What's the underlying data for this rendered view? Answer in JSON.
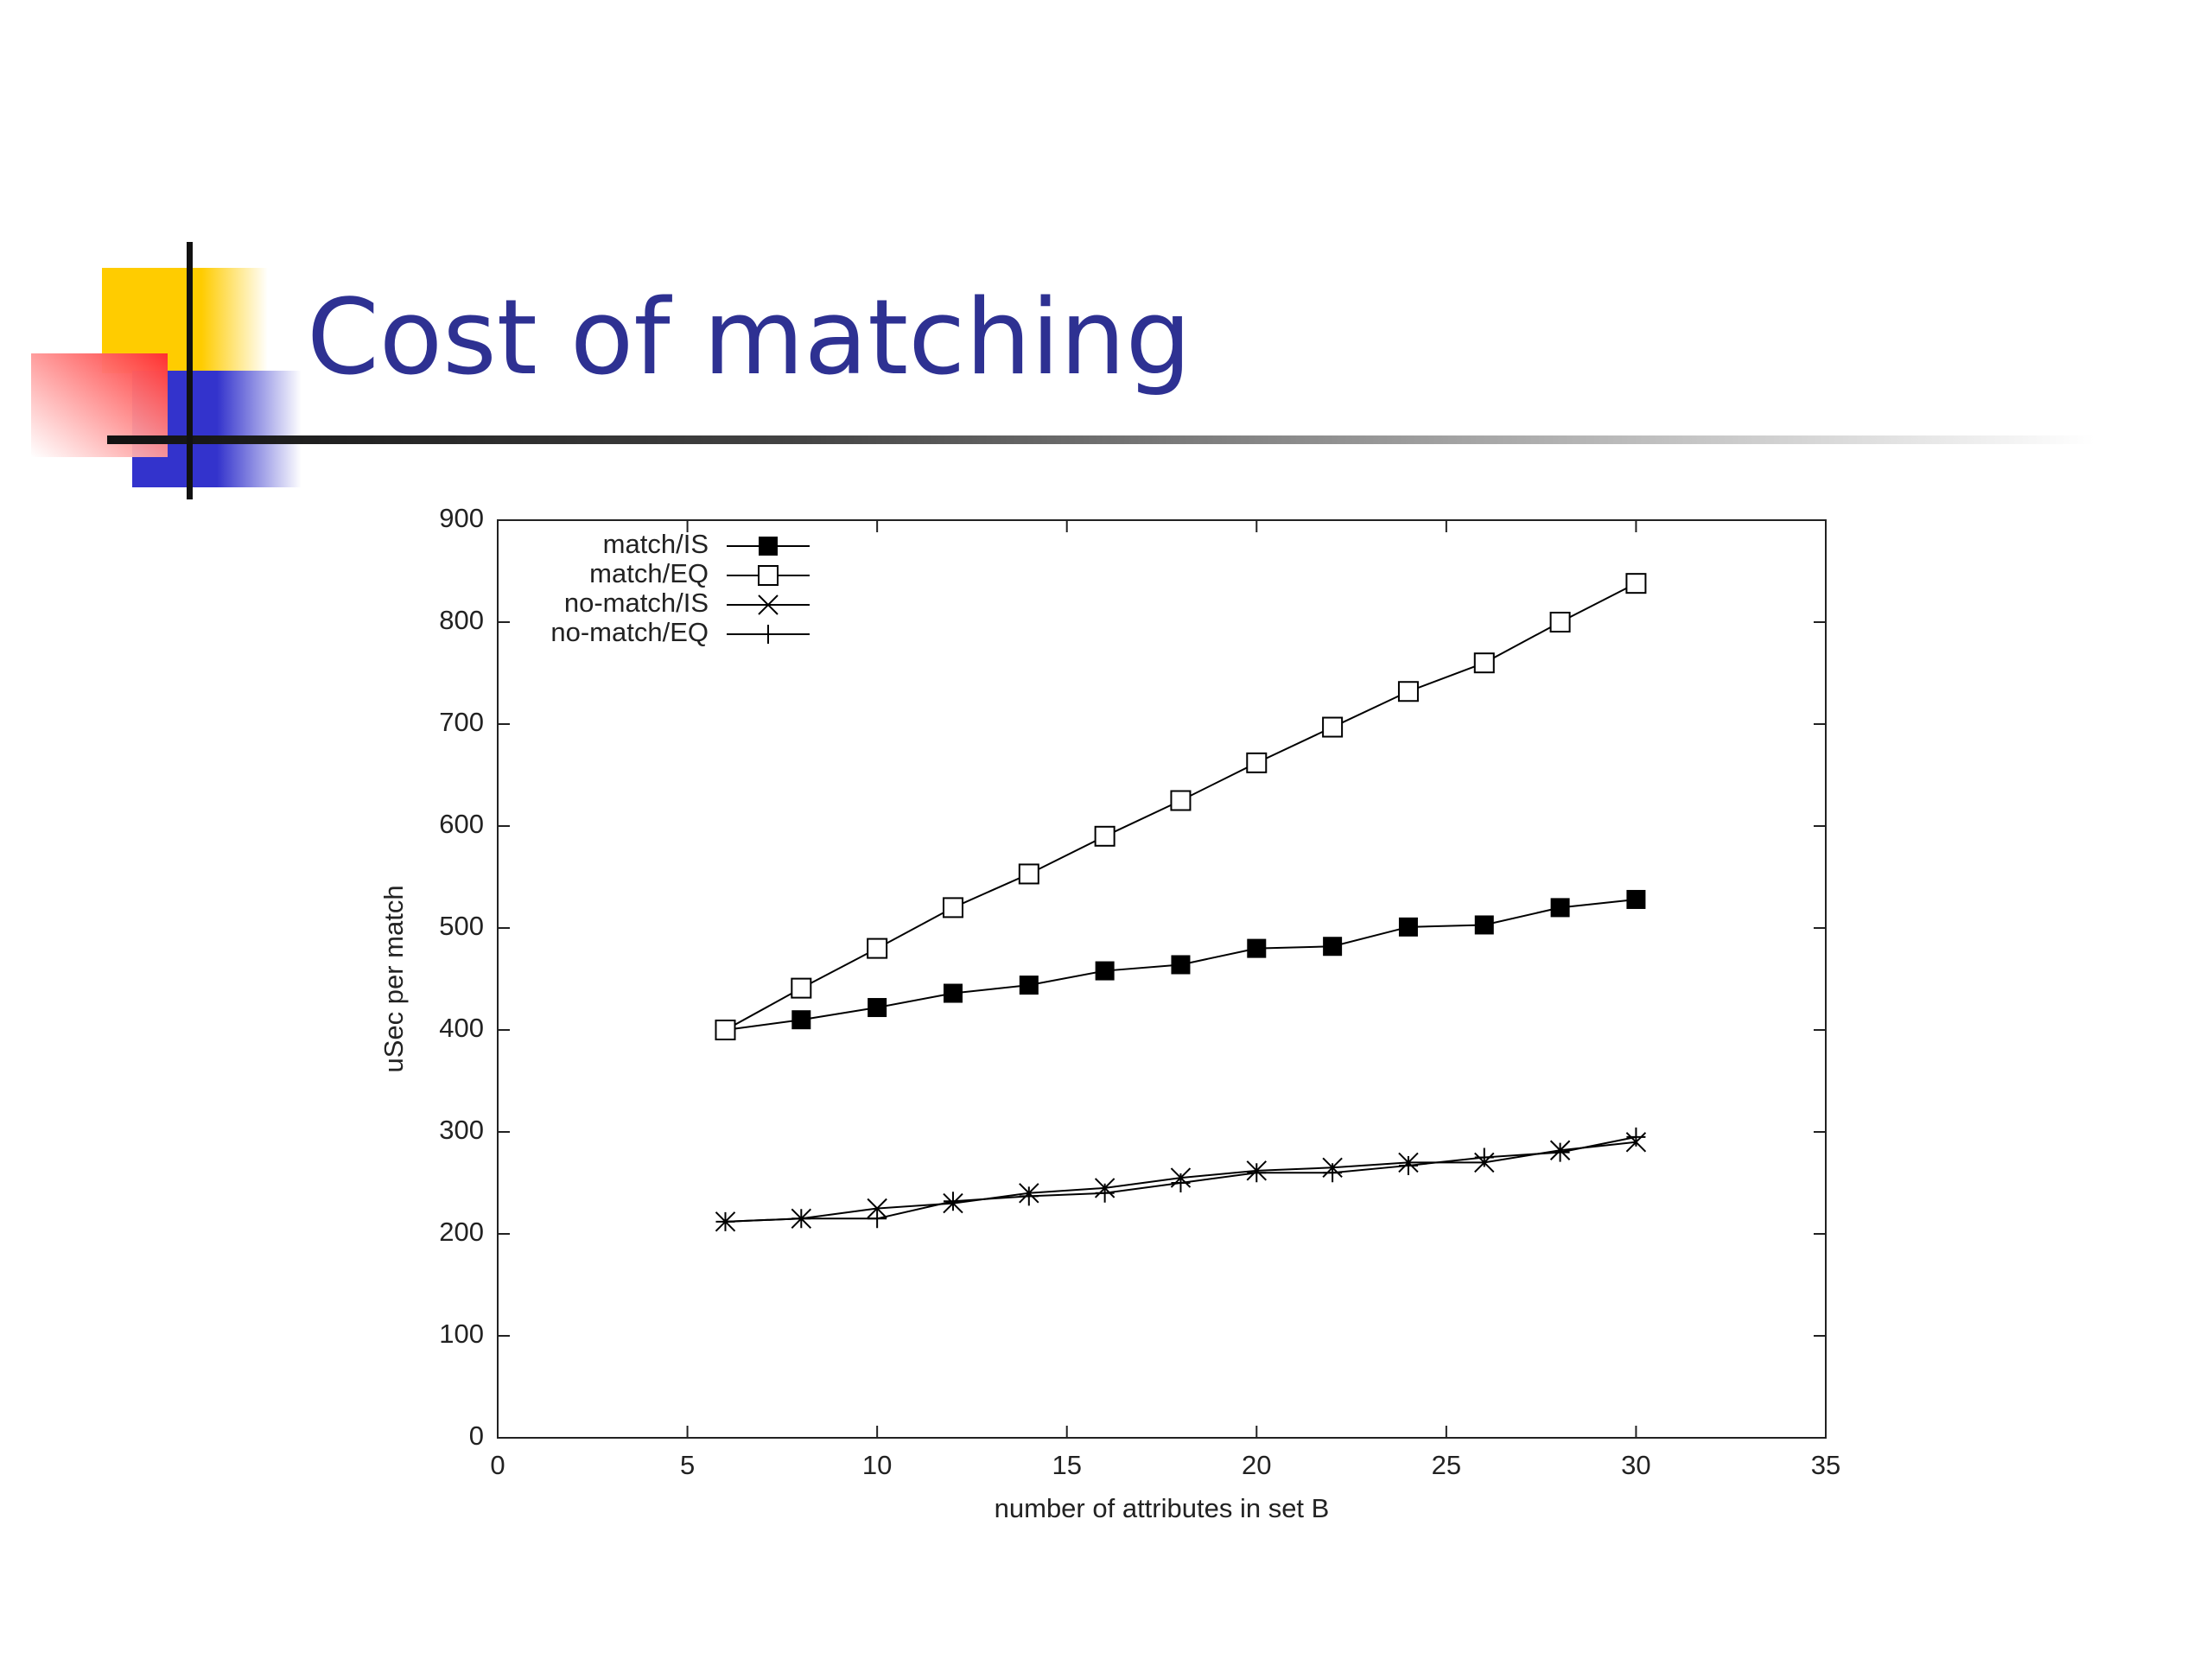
{
  "title": "Cost of matching",
  "chart_data": {
    "type": "line",
    "xlabel": "number of attributes in set B",
    "ylabel": "uSec per match",
    "x": [
      6,
      8,
      10,
      12,
      14,
      16,
      18,
      20,
      22,
      24,
      26,
      28,
      30
    ],
    "series": [
      {
        "name": "match/IS",
        "color": "#000000",
        "marker": "filled-square",
        "values": [
          400,
          410,
          422,
          436,
          444,
          458,
          464,
          480,
          482,
          501,
          503,
          520,
          528
        ]
      },
      {
        "name": "match/EQ",
        "color": "#000000",
        "marker": "open-square",
        "values": [
          400,
          441,
          480,
          520,
          553,
          590,
          625,
          662,
          697,
          732,
          760,
          800,
          838
        ]
      },
      {
        "name": "no-match/IS",
        "color": "#000000",
        "marker": "x",
        "values": [
          212,
          215,
          225,
          230,
          240,
          245,
          255,
          262,
          265,
          270,
          270,
          282,
          290
        ]
      },
      {
        "name": "no-match/EQ",
        "color": "#000000",
        "marker": "plus",
        "values": [
          212,
          215,
          215,
          232,
          237,
          240,
          250,
          260,
          260,
          267,
          275,
          280,
          295
        ]
      }
    ],
    "xlim": [
      0,
      35
    ],
    "xticks": [
      0,
      5,
      10,
      15,
      20,
      25,
      30,
      35
    ],
    "ylim": [
      0,
      900
    ],
    "yticks": [
      0,
      100,
      200,
      300,
      400,
      500,
      600,
      700,
      800,
      900
    ],
    "legend": "upper-left"
  }
}
